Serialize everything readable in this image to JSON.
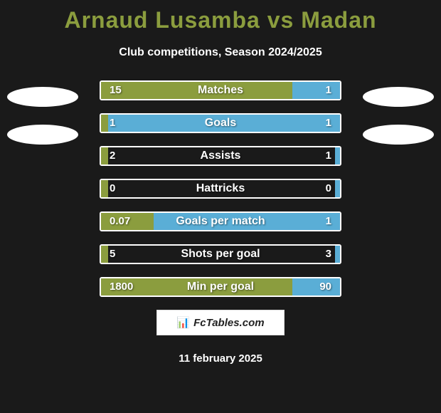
{
  "header": {
    "title": "Arnaud Lusamba vs Madan",
    "subtitle": "Club competitions, Season 2024/2025"
  },
  "colors": {
    "background": "#1a1a1a",
    "accent_left": "#8b9d3e",
    "accent_right": "#5aaed6",
    "title_color": "#8b9d3e",
    "text": "#ffffff",
    "border": "#ffffff"
  },
  "stats": [
    {
      "label": "Matches",
      "left_value": "15",
      "right_value": "1",
      "left_pct": 80,
      "right_pct": 20
    },
    {
      "label": "Goals",
      "left_value": "1",
      "right_value": "1",
      "left_pct": 3,
      "right_pct": 97
    },
    {
      "label": "Assists",
      "left_value": "2",
      "right_value": "1",
      "left_pct": 3,
      "right_pct": 2
    },
    {
      "label": "Hattricks",
      "left_value": "0",
      "right_value": "0",
      "left_pct": 3,
      "right_pct": 2
    },
    {
      "label": "Goals per match",
      "left_value": "0.07",
      "right_value": "1",
      "left_pct": 22,
      "right_pct": 78
    },
    {
      "label": "Shots per goal",
      "left_value": "5",
      "right_value": "3",
      "left_pct": 3,
      "right_pct": 2
    },
    {
      "label": "Min per goal",
      "left_value": "1800",
      "right_value": "90",
      "left_pct": 80,
      "right_pct": 20
    }
  ],
  "branding": {
    "text": "FcTables.com",
    "icon": "📊"
  },
  "footer": {
    "date": "11 february 2025"
  }
}
